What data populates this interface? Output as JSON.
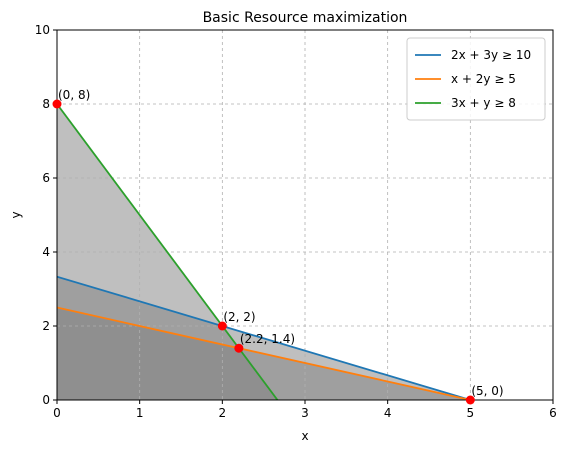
{
  "chart_data": {
    "type": "line",
    "title": "Basic Resource maximization",
    "xlabel": "x",
    "ylabel": "y",
    "xlim": [
      0,
      6
    ],
    "ylim": [
      0,
      10
    ],
    "xticks": [
      "0",
      "1",
      "2",
      "3",
      "4",
      "5",
      "6"
    ],
    "yticks": [
      "0",
      "2",
      "4",
      "6",
      "8",
      "10"
    ],
    "grid": true,
    "legend_position": "top-right",
    "series": [
      {
        "name": "2x + 3y ≥ 10",
        "color": "#1f77b4",
        "x": [
          0,
          5
        ],
        "y": [
          3.333,
          0
        ]
      },
      {
        "name": "x + 2y ≥ 5",
        "color": "#ff7f0e",
        "x": [
          0,
          5
        ],
        "y": [
          2.5,
          0
        ]
      },
      {
        "name": "3x + y ≥ 8",
        "color": "#2ca02c",
        "x": [
          0,
          2.667
        ],
        "y": [
          8,
          0
        ]
      }
    ],
    "shaded_regions": [
      {
        "color": "#808080",
        "opacity": 0.5,
        "polygon": [
          [
            0,
            0
          ],
          [
            0,
            3.333
          ],
          [
            5,
            0
          ]
        ]
      },
      {
        "color": "#808080",
        "opacity": 0.5,
        "polygon": [
          [
            0,
            0
          ],
          [
            0,
            2.5
          ],
          [
            5,
            0
          ]
        ]
      },
      {
        "color": "#808080",
        "opacity": 0.5,
        "polygon": [
          [
            0,
            0
          ],
          [
            0,
            8
          ],
          [
            2.667,
            0
          ]
        ]
      }
    ],
    "points": [
      {
        "label": "(0, 8)",
        "x": 0,
        "y": 8
      },
      {
        "label": "(2, 2)",
        "x": 2,
        "y": 2
      },
      {
        "label": "(2.2, 1.4)",
        "x": 2.2,
        "y": 1.4
      },
      {
        "label": "(5, 0)",
        "x": 5,
        "y": 0
      }
    ],
    "point_color": "#ff0000"
  }
}
